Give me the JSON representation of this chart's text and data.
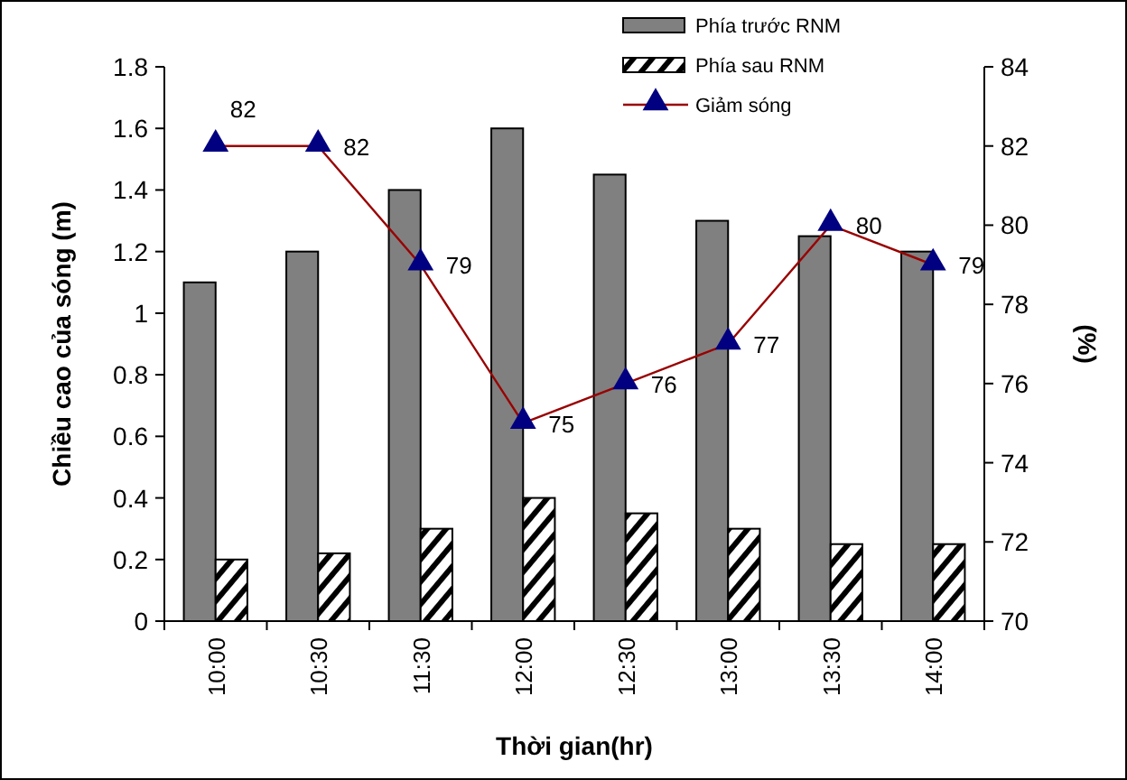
{
  "chart_data": {
    "type": "bar",
    "xlabel": "Thời gian(hr)",
    "ylabel": "Chiều cao của sóng (m)",
    "y2label": "(%)",
    "categories": [
      "10:00",
      "10:30",
      "11:30",
      "12:00",
      "12:30",
      "13:00",
      "13:30",
      "14:00"
    ],
    "series": [
      {
        "name": "Phía trước RNM",
        "color": "#808080",
        "values": [
          1.1,
          1.2,
          1.4,
          1.6,
          1.45,
          1.3,
          1.25,
          1.2
        ]
      },
      {
        "name": "Phía sau RNM",
        "color": "#000000",
        "values": [
          0.2,
          0.22,
          0.3,
          0.4,
          0.35,
          0.3,
          0.25,
          0.25
        ]
      },
      {
        "name": "Giảm sóng",
        "type": "line",
        "axis": "y2",
        "color": "#990000",
        "marker": "triangle",
        "values": [
          82,
          82,
          79,
          75,
          76,
          77,
          80,
          79
        ],
        "value_labels": [
          "82",
          "82",
          "79",
          "75",
          "76",
          "77",
          "80",
          "79"
        ]
      }
    ],
    "ylim": [
      0,
      1.8
    ],
    "yticks": [
      0,
      0.2,
      0.4,
      0.6,
      0.8,
      1,
      1.2,
      1.4,
      1.6,
      1.8
    ],
    "y2lim": [
      70,
      84
    ],
    "y2ticks": [
      70,
      72,
      74,
      76,
      78,
      80,
      82,
      84
    ],
    "legend": "top right",
    "grid": false
  }
}
